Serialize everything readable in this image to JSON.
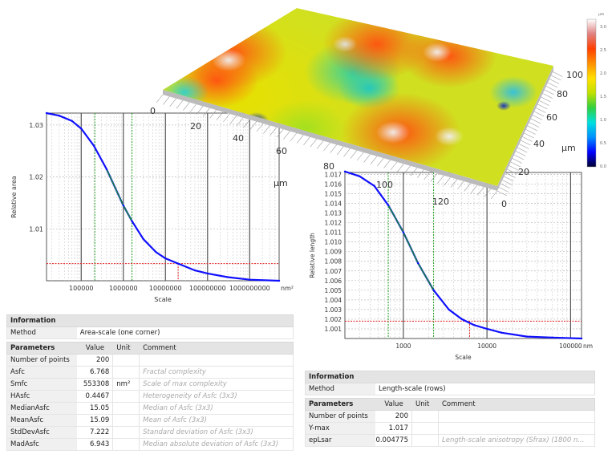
{
  "surface": {
    "x_ticks": [
      "0",
      "20",
      "40",
      "60",
      "80",
      "100",
      "120"
    ],
    "x_unit": "µm",
    "y_ticks": [
      "0",
      "20",
      "40",
      "60",
      "80",
      "100"
    ],
    "y_unit": "µm",
    "colorbar": {
      "unit": "µm",
      "ticks": [
        "0.0",
        "0.5",
        "1.0",
        "1.5",
        "2.0",
        "2.5",
        "3.0"
      ],
      "colors": [
        "#000030",
        "#0000ff",
        "#0090ff",
        "#00e0e0",
        "#30d040",
        "#c0e000",
        "#ffe000",
        "#ff9000",
        "#ff4000",
        "#e08080",
        "#ffffff"
      ]
    }
  },
  "chart_data": [
    {
      "type": "line",
      "title": "",
      "xlabel": "Scale",
      "ylabel": "Relative area",
      "x_unit": "nm²",
      "xscale": "log",
      "xlim": [
        15000,
        5000000000
      ],
      "ylim": [
        1.0,
        1.0323
      ],
      "x_tick_labels": [
        "100000",
        "1000000",
        "10000000",
        "100000000",
        "1000000000"
      ],
      "x_ticks": [
        100000,
        1000000,
        10000000,
        100000000,
        1000000000
      ],
      "y_tick_labels": [
        "1.01",
        "1.02",
        "1.03"
      ],
      "y_ticks": [
        1.01,
        1.02,
        1.03
      ],
      "grid": true,
      "series": [
        {
          "color": "#1010ff",
          "x": [
            15000,
            30000,
            60000,
            100000,
            200000,
            400000,
            1000000,
            1600000,
            3000000,
            6000000,
            10000000,
            20000000,
            50000000,
            100000000,
            300000000,
            1000000000,
            5000000000
          ],
          "y": [
            1.0323,
            1.0318,
            1.0308,
            1.0293,
            1.026,
            1.0215,
            1.0145,
            1.0115,
            1.008,
            1.0055,
            1.0043,
            1.0033,
            1.002,
            1.0014,
            1.0007,
            1.0002,
            1.0
          ]
        }
      ],
      "fit_range": [
        210000,
        1600000
      ],
      "fit_color": "#1a9a1a",
      "threshold_y": 1.0033,
      "threshold_x": 20000000,
      "threshold_color": "#e02020"
    },
    {
      "type": "line",
      "title": "",
      "xlabel": "Scale",
      "ylabel": "Relative length",
      "x_unit": "nm",
      "xscale": "log",
      "xlim": [
        200,
        135000
      ],
      "ylim": [
        1.0,
        1.0172
      ],
      "x_tick_labels": [
        "1000",
        "10000",
        "100000"
      ],
      "x_ticks": [
        1000,
        10000,
        100000
      ],
      "y_tick_labels": [
        "1.001",
        "1.002",
        "1.003",
        "1.004",
        "1.005",
        "1.006",
        "1.007",
        "1.008",
        "1.009",
        "1.010",
        "1.011",
        "1.012",
        "1.013",
        "1.014",
        "1.015",
        "1.016",
        "1.017"
      ],
      "y_ticks": [
        1.001,
        1.002,
        1.003,
        1.004,
        1.005,
        1.006,
        1.007,
        1.008,
        1.009,
        1.01,
        1.011,
        1.012,
        1.013,
        1.014,
        1.015,
        1.016,
        1.017
      ],
      "grid": true,
      "series": [
        {
          "color": "#1010ff",
          "x": [
            200,
            300,
            450,
            660,
            1000,
            1500,
            2300,
            3500,
            5000,
            7000,
            10000,
            15000,
            30000,
            60000,
            135000
          ],
          "y": [
            1.0173,
            1.0168,
            1.0158,
            1.0138,
            1.011,
            1.0078,
            1.005,
            1.003,
            1.002,
            1.0014,
            1.001,
            1.0006,
            1.0002,
            1.0001,
            1.0
          ]
        }
      ],
      "fit_range": [
        660,
        2300
      ],
      "fit_color": "#1a9a1a",
      "threshold_y": 1.0018,
      "threshold_x": 6200,
      "threshold_color": "#e02020"
    }
  ],
  "left_table": {
    "info_title": "Information",
    "method_label": "Method",
    "method_value": "Area-scale (one corner)",
    "headers": [
      "Parameters",
      "Value",
      "Unit",
      "Comment"
    ],
    "rows": [
      [
        "Number of points",
        "200",
        "",
        ""
      ],
      [
        "Asfc",
        "6.768",
        "",
        "Fractal complexity"
      ],
      [
        "Smfc",
        "553308",
        "nm²",
        "Scale of max complexity"
      ],
      [
        "HAsfc",
        "0.4467",
        "",
        "Heterogeneity of Asfc (3x3)"
      ],
      [
        "MedianAsfc",
        "15.05",
        "",
        "Median of Asfc (3x3)"
      ],
      [
        "MeanAsfc",
        "15.09",
        "",
        "Mean of Asfc (3x3)"
      ],
      [
        "StdDevAsfc",
        "7.222",
        "",
        "Standard deviation of Asfc (3x3)"
      ],
      [
        "MadAsfc",
        "6.943",
        "",
        "Median absolute deviation of Asfc (3x3)"
      ]
    ]
  },
  "right_table": {
    "info_title": "Information",
    "method_label": "Method",
    "method_value": "Length-scale (rows)",
    "headers": [
      "Parameters",
      "Value",
      "Unit",
      "Comment"
    ],
    "rows": [
      [
        "Number of points",
        "200",
        "",
        ""
      ],
      [
        "Y-max",
        "1.017",
        "",
        ""
      ],
      [
        "epLsar",
        "0.004775",
        "",
        "Length-scale anisotropy (Sfrax) (1800 n..."
      ]
    ]
  }
}
